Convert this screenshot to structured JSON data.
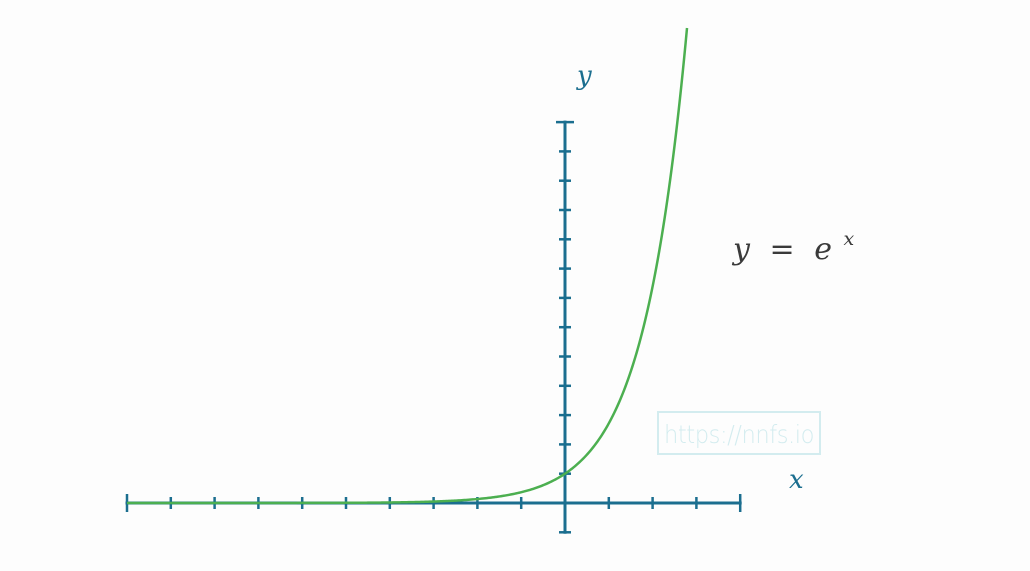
{
  "chart_data": {
    "type": "line",
    "function": "exp",
    "xlim": [
      -10,
      5
    ],
    "ylim": [
      -1,
      14
    ],
    "x_ticks": [
      -10,
      -9,
      -8,
      -7,
      -6,
      -5,
      -4,
      -3,
      -2,
      -1,
      1,
      2,
      3,
      4
    ],
    "y_ticks": [
      1,
      2,
      3,
      4,
      5,
      6,
      7,
      8,
      9,
      10,
      11,
      12,
      13
    ],
    "xlabel": "x",
    "ylabel": "y",
    "annotation": {
      "lhs": "y",
      "op": "=",
      "base": "e",
      "exponent": "x"
    },
    "grid": false,
    "legend": "none"
  },
  "watermark": "https://nnfs.io",
  "colors": {
    "axis": "#1b6e8f",
    "curve": "#4caf50",
    "equation": "#3a3a3a",
    "watermark": "#d3ecef"
  }
}
